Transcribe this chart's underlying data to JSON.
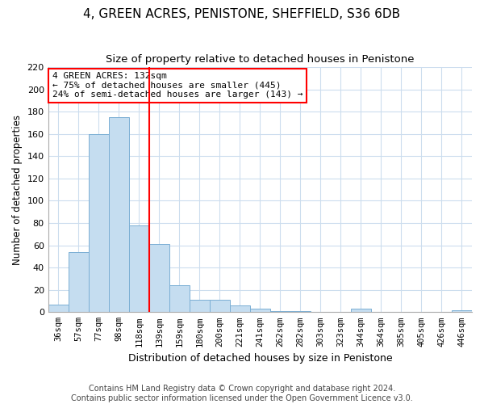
{
  "title": "4, GREEN ACRES, PENISTONE, SHEFFIELD, S36 6DB",
  "subtitle": "Size of property relative to detached houses in Penistone",
  "xlabel": "Distribution of detached houses by size in Penistone",
  "ylabel": "Number of detached properties",
  "bar_labels": [
    "36sqm",
    "57sqm",
    "77sqm",
    "98sqm",
    "118sqm",
    "139sqm",
    "159sqm",
    "180sqm",
    "200sqm",
    "221sqm",
    "241sqm",
    "262sqm",
    "282sqm",
    "303sqm",
    "323sqm",
    "344sqm",
    "364sqm",
    "385sqm",
    "405sqm",
    "426sqm",
    "446sqm"
  ],
  "bar_values": [
    7,
    54,
    160,
    175,
    78,
    61,
    24,
    11,
    11,
    6,
    3,
    1,
    1,
    0,
    0,
    3,
    0,
    0,
    0,
    0,
    2
  ],
  "bar_color": "#c5ddf0",
  "bar_edge_color": "#7bafd4",
  "vline_x": 4.5,
  "vline_color": "red",
  "annotation_text": "4 GREEN ACRES: 132sqm\n← 75% of detached houses are smaller (445)\n24% of semi-detached houses are larger (143) →",
  "annotation_box_color": "white",
  "annotation_box_edge": "red",
  "ylim": [
    0,
    220
  ],
  "yticks": [
    0,
    20,
    40,
    60,
    80,
    100,
    120,
    140,
    160,
    180,
    200,
    220
  ],
  "footer_text": "Contains HM Land Registry data © Crown copyright and database right 2024.\nContains public sector information licensed under the Open Government Licence v3.0.",
  "title_fontsize": 11,
  "subtitle_fontsize": 9.5,
  "xlabel_fontsize": 9,
  "ylabel_fontsize": 8.5,
  "annotation_fontsize": 8,
  "footer_fontsize": 7,
  "grid_color": "#ccddee",
  "tick_fontsize": 7.5
}
